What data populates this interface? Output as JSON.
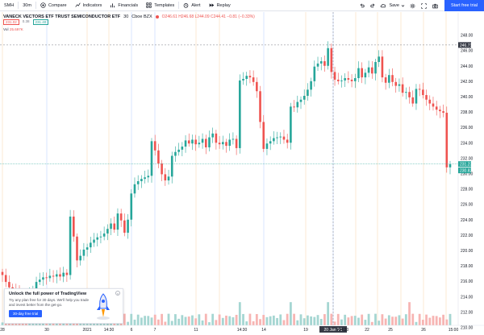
{
  "toolbar": {
    "symbol": "SMH",
    "interval": "30m",
    "compare": "Compare",
    "indicators": "Indicators",
    "financials": "Financials",
    "templates": "Templates",
    "alert": "Alert",
    "replay": "Replay",
    "save": "Save",
    "trial": "Start free trial"
  },
  "legend": {
    "name": "VANECK VECTORS ETF TRUST SEMICONDUCTOR ETF",
    "interval": "30",
    "exchange": "Cboe BZX",
    "ohlc": "O246.61 H246.68 L244.09 C244.41 −0.81 (−0.33%)",
    "sell": "231.02",
    "spread": "0.38",
    "buy": "231.40",
    "vol_label": "Vol",
    "vol_value": "25.697K"
  },
  "promo": {
    "title": "Unlock the full power of TradingView",
    "desc": "Try any plan free for 30 days. We’ll help you trade and invest better from the get-go.",
    "button": "30-day free trial"
  },
  "chart_data": {
    "type": "candlestick",
    "y_axis_ticks": [
      "248.00",
      "246.00",
      "244.00",
      "242.00",
      "240.00",
      "238.00",
      "236.00",
      "234.00",
      "232.00",
      "230.00",
      "228.00",
      "226.00",
      "224.00",
      "222.00",
      "220.00",
      "218.00",
      "216.00",
      "214.00",
      "212.00",
      "210.00"
    ],
    "x_axis_ticks": [
      "28",
      "30",
      "2021",
      "14:30",
      "6",
      "7",
      "11",
      "14:30",
      "14",
      "19",
      "20 Jan '21",
      "14:30",
      "22",
      "25",
      "26",
      "15:00"
    ],
    "ylim": [
      209,
      249
    ],
    "price_labels": [
      "246.71",
      "231.23",
      "230.82"
    ],
    "colors": {
      "up": "#26a69a",
      "down": "#ef5350",
      "vol_up": "#a5d6d2",
      "vol_down": "#f7b5b3",
      "crosshair": "#787b86",
      "last_price": "#26a69a"
    },
    "closes": [
      216.8,
      215.9,
      215.2,
      214.9,
      214.6,
      214.2,
      213.9,
      213.6,
      214.3,
      214.8,
      215.9,
      216.2,
      216.5,
      216.4,
      216.7,
      216.6,
      216.9,
      216.6,
      217.1,
      216.8,
      224.4,
      221.8,
      218.7,
      219.3,
      220.1,
      220.4,
      221.0,
      221.4,
      221.7,
      221.8,
      222.2,
      222.8,
      223.5,
      222.7,
      224.8,
      223.9,
      222.3,
      224.0,
      227.4,
      228.6,
      229.0,
      229.3,
      229.5,
      229.7,
      234.2,
      233.0,
      231.3,
      229.9,
      229.1,
      229.6,
      232.3,
      232.8,
      233.1,
      233.5,
      234.3,
      233.9,
      234.4,
      233.8,
      234.0,
      234.5,
      233.4,
      234.7,
      235.2,
      234.0,
      233.8,
      234.1,
      233.6,
      234.4,
      234.5,
      233.3,
      242.1,
      242.3,
      242.7,
      242.5,
      241.9,
      240.7,
      236.7,
      233.2,
      233.9,
      234.2,
      234.6,
      234.7,
      234.8,
      234.4,
      234.0,
      238.7,
      238.6,
      239.3,
      239.6,
      240.1,
      240.9,
      242.0,
      243.9,
      244.3,
      244.6,
      244.0,
      246.3,
      243.2,
      242.2,
      242.0,
      242.1,
      242.4,
      242.2,
      242.0,
      242.4,
      243.7,
      242.5,
      243.1,
      243.8,
      243.0,
      244.5,
      245.2,
      242.5,
      241.8,
      242.8,
      241.9,
      241.4,
      241.6,
      240.5,
      240.6,
      239.9,
      239.1,
      241.0,
      240.9,
      240.2,
      239.6,
      239.1,
      238.7,
      238.3,
      238.1,
      237.9,
      230.8,
      231.2
    ]
  }
}
